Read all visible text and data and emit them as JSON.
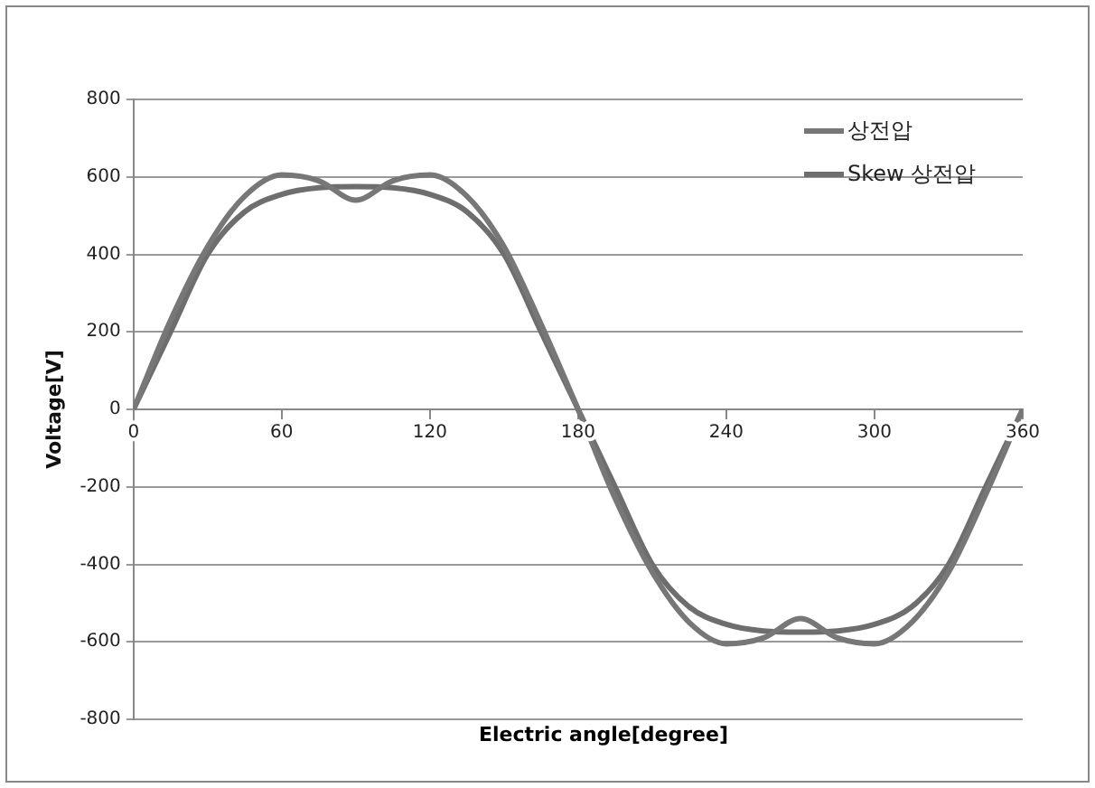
{
  "chart_data": {
    "type": "line",
    "xlabel": "Electric angle[degree]",
    "ylabel": "Voltage[V]",
    "x": [
      0,
      15,
      30,
      45,
      60,
      75,
      90,
      105,
      120,
      135,
      150,
      165,
      180,
      195,
      210,
      225,
      240,
      255,
      270,
      285,
      300,
      315,
      330,
      345,
      360
    ],
    "series": [
      {
        "name": "상전압",
        "color": "#777777",
        "values": [
          0,
          230,
          420,
          550,
          605,
          590,
          540,
          590,
          605,
          550,
          420,
          220,
          0,
          -230,
          -420,
          -550,
          -605,
          -590,
          -540,
          -590,
          -605,
          -550,
          -420,
          -220,
          0
        ]
      },
      {
        "name": "Skew 상전압",
        "color": "#6e6e6e",
        "values": [
          0,
          200,
          400,
          510,
          555,
          572,
          575,
          572,
          555,
          510,
          400,
          200,
          0,
          -200,
          -400,
          -510,
          -555,
          -572,
          -575,
          -572,
          -555,
          -510,
          -400,
          -200,
          0
        ]
      }
    ],
    "xlim": [
      0,
      360
    ],
    "xticks": [
      0,
      60,
      120,
      180,
      240,
      300,
      360
    ],
    "ylim": [
      -800,
      800
    ],
    "yticks": [
      -800,
      -600,
      -400,
      -200,
      0,
      200,
      400,
      600,
      800
    ],
    "grid": "y",
    "legend": "top right",
    "marker": "none",
    "line_style": "solid"
  }
}
